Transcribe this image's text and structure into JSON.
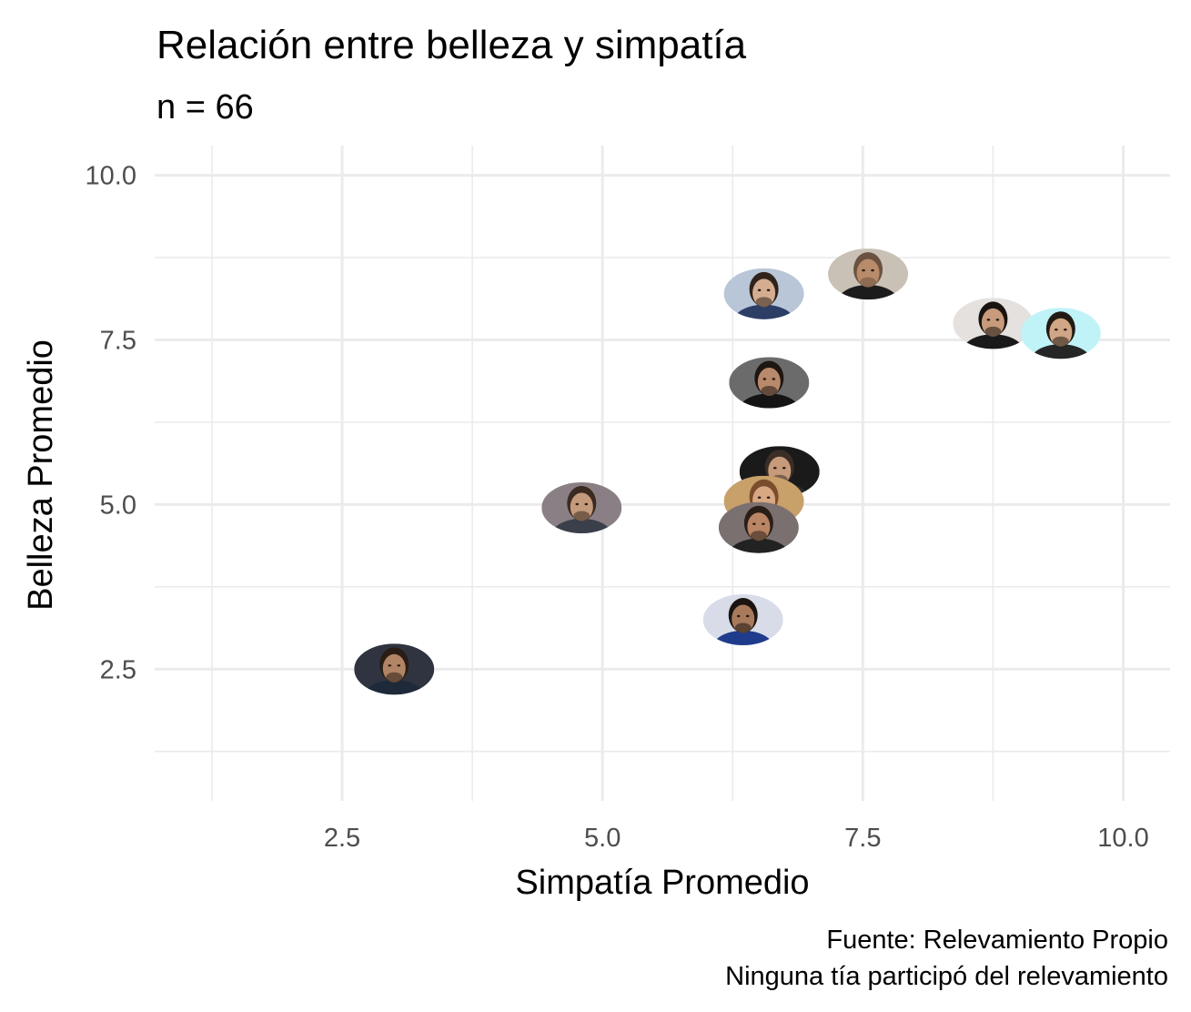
{
  "chart_data": {
    "type": "scatter",
    "title": "Relación entre belleza y simpatía",
    "subtitle": "n = 66",
    "xlabel": "Simpatía Promedio",
    "ylabel": "Belleza Promedio",
    "caption": [
      "Fuente: Relevamiento Propio",
      "Ninguna tía participó del relevamiento"
    ],
    "xlim": [
      0.7,
      10.45
    ],
    "ylim": [
      0.5,
      10.45
    ],
    "x_ticks": [
      {
        "value": 2.5,
        "label": "2.5"
      },
      {
        "value": 5.0,
        "label": "5.0"
      },
      {
        "value": 7.5,
        "label": "7.5"
      },
      {
        "value": 10.0,
        "label": "10.0"
      }
    ],
    "y_ticks": [
      {
        "value": 2.5,
        "label": "2.5"
      },
      {
        "value": 5.0,
        "label": "5.0"
      },
      {
        "value": 7.5,
        "label": "7.5"
      },
      {
        "value": 10.0,
        "label": "10.0"
      }
    ],
    "grid": true,
    "marker": "face-photo",
    "points": [
      {
        "x": 3.0,
        "y": 2.5,
        "skin": "#b08464",
        "hair": "#2a1d15",
        "bg": "#2f3440",
        "shirt": "#1e2a3a"
      },
      {
        "x": 4.8,
        "y": 4.95,
        "skin": "#c49a7c",
        "hair": "#3b2a20",
        "bg": "#8a7f85",
        "shirt": "#3a3f4a"
      },
      {
        "x": 6.55,
        "y": 8.2,
        "skin": "#d4ad90",
        "hair": "#2f231b",
        "bg": "#b8c6d8",
        "shirt": "#2c3e66"
      },
      {
        "x": 7.55,
        "y": 8.5,
        "skin": "#b88b6a",
        "hair": "#6b5240",
        "bg": "#c9c1b6",
        "shirt": "#1c1c1c"
      },
      {
        "x": 8.75,
        "y": 7.75,
        "skin": "#c79b7b",
        "hair": "#1a1410",
        "bg": "#e4e1de",
        "shirt": "#1a1a1a"
      },
      {
        "x": 9.4,
        "y": 7.6,
        "skin": "#d0a686",
        "hair": "#221a14",
        "bg": "#bff3f8",
        "shirt": "#262626"
      },
      {
        "x": 6.6,
        "y": 6.85,
        "skin": "#b8896a",
        "hair": "#1e1612",
        "bg": "#6b6b6b",
        "shirt": "#141414"
      },
      {
        "x": 6.7,
        "y": 5.5,
        "skin": "#c89a7c",
        "hair": "#3a2e26",
        "bg": "#1a1a1a",
        "shirt": "#2a2a2a"
      },
      {
        "x": 6.55,
        "y": 5.05,
        "skin": "#d8a882",
        "hair": "#7a4d2c",
        "bg": "#c8a06a",
        "shirt": "#8a5a3a"
      },
      {
        "x": 6.5,
        "y": 4.65,
        "skin": "#b98564",
        "hair": "#2a1f18",
        "bg": "#7a7070",
        "shirt": "#222222"
      },
      {
        "x": 6.35,
        "y": 3.25,
        "skin": "#a87a5c",
        "hair": "#1c1410",
        "bg": "#d8dce8",
        "shirt": "#1f3c8c"
      }
    ]
  }
}
